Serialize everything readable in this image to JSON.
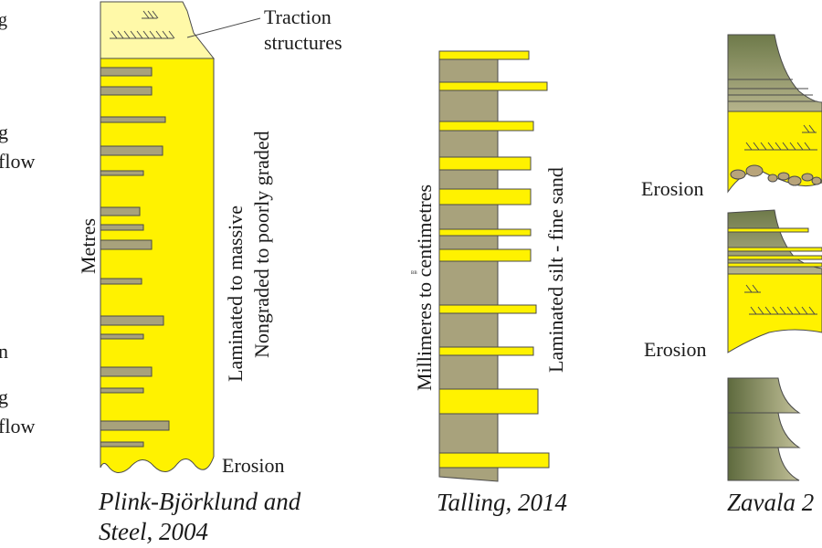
{
  "colors": {
    "sand": "#fff200",
    "sand_light": "#fff9a8",
    "mud": "#a8a27c",
    "mud_dark": "#5e6a3e",
    "outline": "#4a4a4a"
  },
  "left_edge": {
    "fragments": [
      "g",
      "g",
      "flow",
      "n",
      "g",
      "flow"
    ]
  },
  "column1": {
    "traction_label_line1": "Traction",
    "traction_label_line2": "structures",
    "thickness_label": "Metres",
    "texture_label_line1": "Laminated to massive",
    "texture_label_line2": "Nongraded to poorly graded",
    "erosion_label": "Erosion",
    "caption_line1": "Plink-Björklund and",
    "caption_line2": "Steel, 2004"
  },
  "column2": {
    "thickness_label": "Millimeres to centimetres",
    "texture_label": "Laminated silt -  fine sand",
    "tiny_mark": "BB",
    "caption": "Talling, 2014"
  },
  "column3": {
    "erosion_label_upper": "Erosion",
    "erosion_label_lower": "Erosion",
    "caption": "Zavala 2"
  }
}
